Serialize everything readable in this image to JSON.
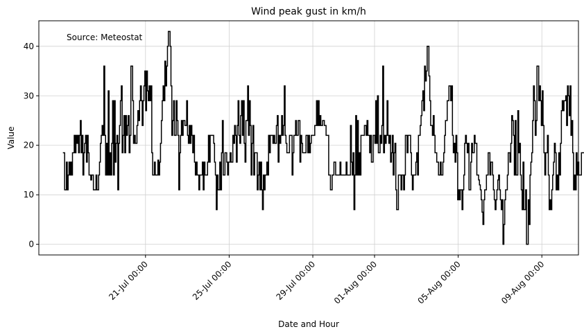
{
  "chart_data": {
    "type": "line",
    "title": "Wind peak gust in km/h",
    "xlabel": "Date and Hour",
    "ylabel": "Value",
    "annotation": "Source: Meteostat",
    "ylim": [
      -2.15,
      45.15
    ],
    "y_ticks": [
      0,
      10,
      20,
      30,
      40
    ],
    "x_ticks": [
      {
        "day": 3.95,
        "label": "21-Jul 00:00"
      },
      {
        "day": 7.95,
        "label": "25-Jul 00:00"
      },
      {
        "day": 11.95,
        "label": "29-Jul 00:00"
      },
      {
        "day": 14.9,
        "label": "01-Aug 00:00"
      },
      {
        "day": 18.9,
        "label": "05-Aug 00:00"
      },
      {
        "day": 22.9,
        "label": "09-Aug 00:00"
      }
    ],
    "xlim_days": [
      -1.15,
      24.65
    ],
    "grid": true,
    "line_color": "#000000",
    "series": [
      {
        "step": "hourly",
        "values": [
          18.5,
          18.5,
          11,
          11,
          16.6,
          11,
          14,
          16.6,
          14,
          16.6,
          14,
          18.5,
          18.5,
          22,
          18.5,
          22,
          20.4,
          22,
          18.5,
          22,
          25,
          18.5,
          22,
          14,
          18.5,
          20.4,
          22,
          16.6,
          22,
          18.5,
          14,
          14,
          13,
          14,
          14,
          11,
          11,
          11,
          14,
          11,
          11,
          14,
          16.6,
          20.4,
          22,
          24,
          22,
          36,
          22,
          14,
          20.4,
          14,
          31,
          14,
          18.5,
          14,
          20.4,
          29,
          14,
          29,
          16.6,
          20.4,
          22,
          11,
          20.4,
          24,
          29,
          32,
          18.5,
          22,
          26,
          18.5,
          26,
          22,
          24,
          26,
          18.5,
          22,
          36,
          36,
          29,
          20.4,
          22,
          20.4,
          20.4,
          24,
          27,
          25,
          29,
          32,
          29,
          24,
          29,
          32,
          35,
          27,
          35,
          31,
          29,
          32,
          29,
          32,
          18.5,
          14,
          14,
          16.6,
          14,
          14,
          14,
          17,
          14,
          16.6,
          20.4,
          25,
          29,
          32,
          29,
          37,
          32,
          36,
          40,
          43,
          43,
          40,
          32,
          22,
          25,
          29,
          22,
          22,
          29,
          25,
          22,
          11,
          18.5,
          22,
          25,
          22,
          25,
          25,
          24,
          24,
          29,
          22,
          20.4,
          24,
          20.4,
          24,
          22,
          18.5,
          22,
          16.6,
          14,
          16.6,
          14,
          14,
          11,
          14,
          14,
          14,
          16.6,
          11,
          16.6,
          14,
          14,
          14,
          16.6,
          22,
          16.6,
          22,
          22,
          22,
          22,
          20.4,
          16.6,
          14,
          7,
          14,
          11,
          11,
          16.6,
          11,
          18.5,
          25,
          14,
          14,
          18.5,
          18.5,
          16.6,
          14,
          16.6,
          16.6,
          18.5,
          16.6,
          16.6,
          22,
          20.4,
          24,
          22,
          16.6,
          24,
          29,
          22,
          20.4,
          26,
          29,
          22,
          29,
          20.4,
          16.6,
          25,
          25,
          32,
          22,
          29,
          24,
          14,
          20.4,
          24,
          14,
          18.5,
          18.5,
          18.5,
          11,
          14,
          16.6,
          11,
          16.6,
          11,
          7,
          14,
          11,
          14,
          14,
          16.6,
          14,
          22,
          18.5,
          22,
          22,
          22,
          20.4,
          22,
          20.4,
          20.4,
          24,
          26,
          16.6,
          22,
          20.4,
          22,
          26,
          22,
          24,
          32,
          22,
          20.4,
          18.5,
          18.5,
          18.5,
          22,
          22,
          22,
          14,
          18.5,
          22,
          22,
          25,
          22,
          22,
          25,
          25,
          16.6,
          22,
          20.4,
          18.5,
          18.5,
          18.5,
          18.5,
          22,
          22,
          18.5,
          22,
          18.5,
          20.4,
          22,
          22,
          22,
          22,
          24,
          24,
          29,
          24,
          29,
          24,
          26,
          24,
          24,
          25,
          25,
          24,
          24,
          22,
          22,
          22,
          14,
          14,
          11,
          11,
          14,
          14,
          16.6,
          16.6,
          14,
          14,
          14,
          14,
          14,
          16.6,
          14,
          14,
          14,
          14,
          14,
          14,
          16.6,
          14,
          14,
          14,
          14,
          24,
          16.6,
          14,
          18.5,
          7,
          14,
          26,
          14,
          25,
          14,
          18.5,
          14,
          22,
          22,
          22,
          22,
          24,
          24,
          22,
          25,
          22,
          22,
          18.5,
          22,
          16.6,
          16.6,
          22,
          22,
          20.4,
          29,
          20.4,
          30,
          18.5,
          18.5,
          22,
          20.4,
          24,
          36,
          18.5,
          22,
          20.4,
          22,
          29,
          22,
          20.4,
          22,
          16.6,
          18.5,
          22,
          14,
          18.5,
          20.4,
          11,
          7,
          7,
          14,
          14,
          14,
          11,
          14,
          14,
          11,
          14,
          22,
          22,
          18.5,
          22,
          22,
          22,
          18.5,
          14,
          11,
          14,
          14,
          14,
          16.6,
          18.5,
          14,
          22,
          22,
          24,
          26,
          29,
          31,
          27,
          36,
          33,
          35,
          40,
          40,
          34,
          29,
          24,
          24,
          22,
          26,
          22,
          18.5,
          18.5,
          16.6,
          16.6,
          14,
          14,
          16.6,
          14,
          14,
          16.6,
          18.5,
          22,
          25,
          25,
          29,
          29,
          32,
          32,
          29,
          32,
          22,
          18.5,
          20.4,
          16.6,
          22,
          18.5,
          9,
          11,
          9,
          11,
          11,
          7,
          11,
          14,
          20.4,
          22,
          20.4,
          18.5,
          20.4,
          11,
          11,
          16.6,
          20.4,
          18.5,
          18.5,
          22,
          20.4,
          20.4,
          14,
          14,
          13,
          12,
          11,
          9,
          6.5,
          4,
          9,
          11,
          11,
          14,
          14,
          18.5,
          18.5,
          14,
          16.6,
          16.6,
          14,
          11,
          9,
          7,
          9,
          11,
          13,
          14,
          11,
          9,
          7,
          9,
          0,
          4,
          9,
          11,
          11,
          14,
          18.5,
          18.5,
          16.6,
          20.4,
          26,
          25,
          22,
          14,
          25,
          14,
          14,
          27,
          18.5,
          20.4,
          14,
          11,
          7,
          16.6,
          7,
          7,
          11,
          0,
          0,
          9,
          4,
          14,
          16.6,
          18.5,
          25,
          32,
          29,
          22,
          25,
          36,
          36,
          29,
          32,
          29,
          24,
          31,
          24,
          18.5,
          14,
          18.5,
          18.5,
          22,
          14,
          7,
          9,
          7,
          11,
          14,
          16.6,
          20.4,
          18.5,
          11,
          14,
          11,
          18.5,
          14,
          20.4,
          27,
          29,
          27,
          29,
          29,
          30,
          24,
          32,
          30,
          26,
          32,
          22,
          25,
          18.5,
          11,
          14,
          11,
          18.5,
          14,
          16.6,
          14,
          14,
          14,
          18.5,
          18.5,
          18.5,
          18.5,
          18.5,
          20.4,
          30,
          32,
          36,
          43,
          38,
          36,
          38,
          34,
          36,
          29,
          32,
          29,
          25,
          22,
          16.6,
          22,
          14,
          11,
          18.5,
          14,
          14,
          18.5,
          22,
          25,
          13,
          20.4,
          18.5,
          22,
          25,
          25,
          29,
          22,
          25,
          25,
          27,
          25,
          25,
          29,
          25,
          22,
          24,
          29,
          18.5,
          22,
          14,
          11,
          16.6,
          18.5,
          20.4,
          18.5,
          16.6,
          14,
          14,
          14,
          14,
          16.6,
          18.5,
          14,
          18.5,
          13,
          18.5,
          25,
          20.4,
          20.4,
          25,
          25
        ]
      }
    ]
  }
}
